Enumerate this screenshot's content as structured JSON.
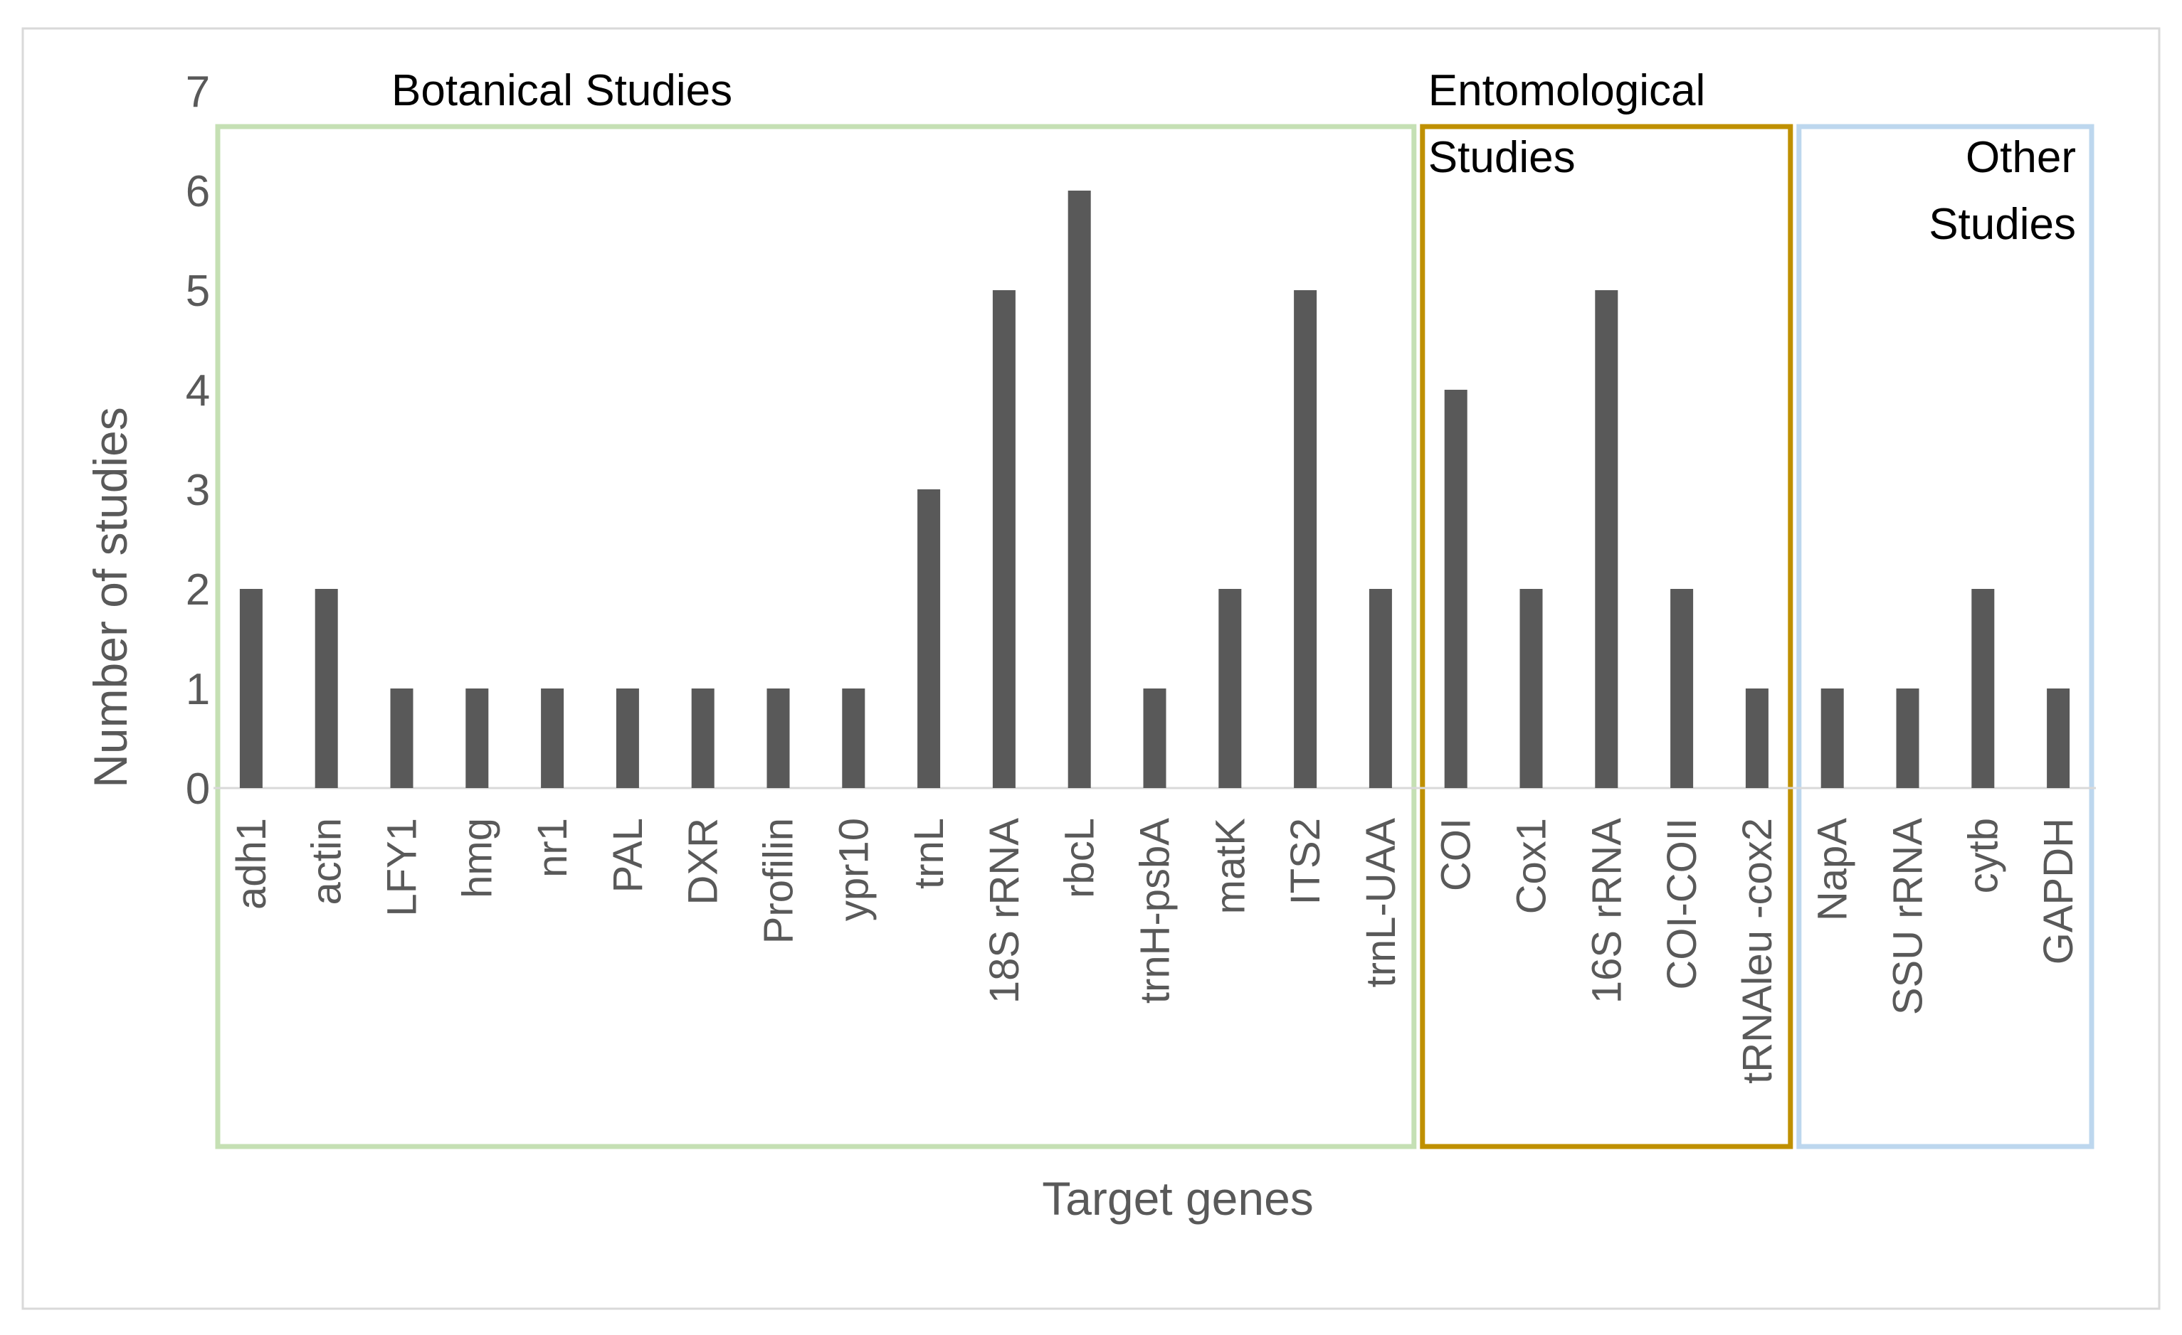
{
  "chart_data": {
    "type": "bar",
    "title": "",
    "xlabel": "Target genes",
    "ylabel": "Number of studies",
    "ylim": [
      0,
      7
    ],
    "yticks": [
      0,
      1,
      2,
      3,
      4,
      5,
      6,
      7
    ],
    "grid": false,
    "legend": "none",
    "categories": [
      "adh1",
      "actin",
      "LFY1",
      "hmg",
      "nr1",
      "PAL",
      "DXR",
      "Profilin",
      "ypr10",
      "trnL",
      "18S rRNA",
      "rbcL",
      "trnH-psbA",
      "matK",
      "ITS2",
      "trnL-UAA",
      "COI",
      "Cox1",
      "16S rRNA",
      "COI-COII",
      "tRNAleu -cox2",
      "NapA",
      "SSU rRNA",
      "cytb",
      "GAPDH"
    ],
    "values": [
      2,
      2,
      1,
      1,
      1,
      1,
      1,
      1,
      1,
      3,
      5,
      6,
      1,
      2,
      5,
      2,
      4,
      2,
      5,
      2,
      1,
      1,
      1,
      2,
      1
    ],
    "bar_color": "#595959",
    "groups": [
      {
        "name": "Botanical Studies",
        "label_lines": [
          "Botanical Studies"
        ],
        "start": 0,
        "end": 15,
        "color": "#c5e0b4"
      },
      {
        "name": "Entomological Studies",
        "label_lines": [
          "Entomological",
          "Studies"
        ],
        "start": 16,
        "end": 20,
        "color": "#bf9000"
      },
      {
        "name": "Other Studies",
        "label_lines": [
          "Other",
          "Studies"
        ],
        "start": 21,
        "end": 24,
        "color": "#bdd7ee"
      }
    ]
  }
}
